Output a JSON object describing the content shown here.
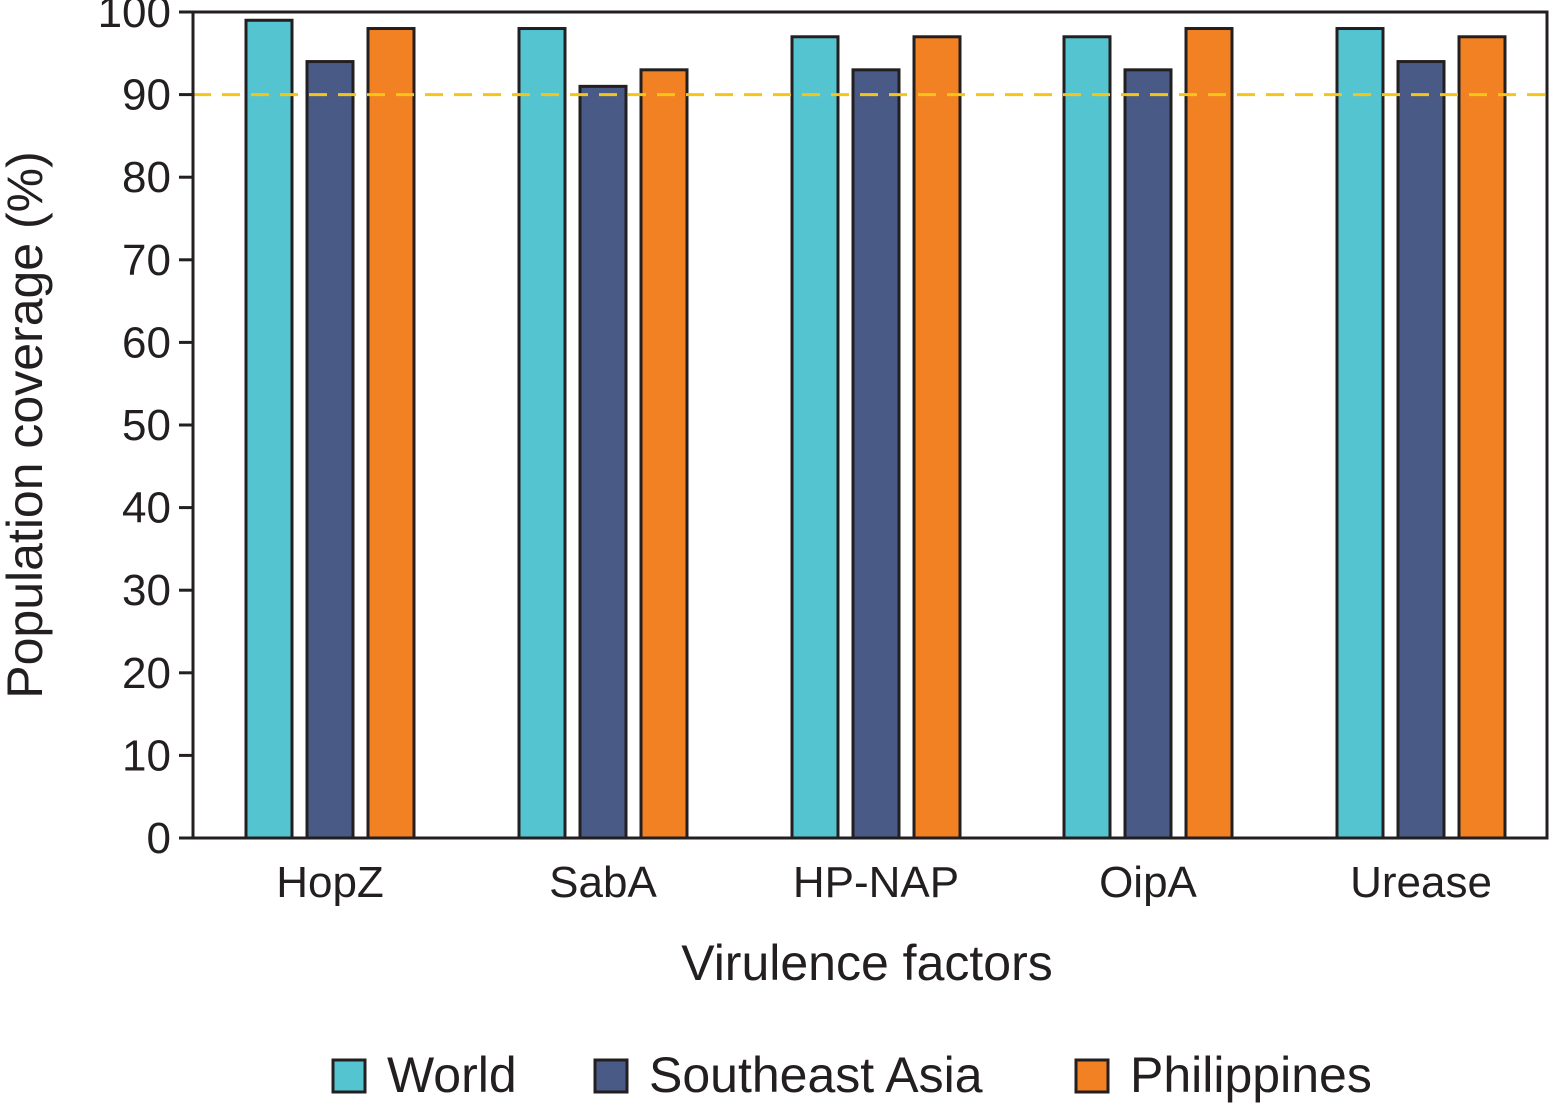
{
  "chart_data": {
    "type": "bar",
    "title": "",
    "xlabel": "Virulence factors",
    "ylabel": "Population coverage (%)",
    "categories": [
      "HopZ",
      "SabA",
      "HP-NAP",
      "OipA",
      "Urease"
    ],
    "series": [
      {
        "name": "World",
        "color": "#54c4d0",
        "values": [
          99,
          98,
          97,
          97,
          98
        ]
      },
      {
        "name": "Southeast Asia",
        "color": "#485a85",
        "values": [
          94,
          91,
          93,
          93,
          94
        ]
      },
      {
        "name": "Philippines",
        "color": "#f28123",
        "values": [
          98,
          93,
          97,
          98,
          97
        ]
      }
    ],
    "ylim": [
      0,
      100
    ],
    "yticks": [
      0,
      10,
      20,
      30,
      40,
      50,
      60,
      70,
      80,
      90,
      100
    ],
    "reference_line": {
      "value": 90,
      "color": "#f5c518",
      "style": "dashed"
    },
    "legend_position": "bottom",
    "grid": false
  }
}
